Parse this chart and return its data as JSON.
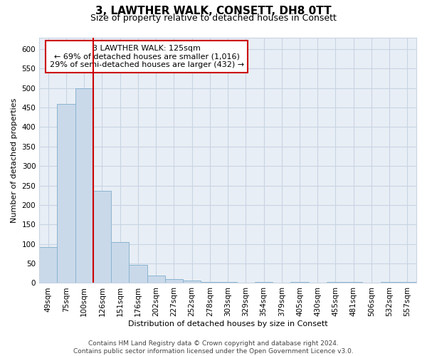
{
  "title1": "3, LAWTHER WALK, CONSETT, DH8 0TT",
  "title2": "Size of property relative to detached houses in Consett",
  "xlabel": "Distribution of detached houses by size in Consett",
  "ylabel": "Number of detached properties",
  "bar_labels": [
    "49sqm",
    "75sqm",
    "100sqm",
    "126sqm",
    "151sqm",
    "176sqm",
    "202sqm",
    "227sqm",
    "252sqm",
    "278sqm",
    "303sqm",
    "329sqm",
    "354sqm",
    "379sqm",
    "405sqm",
    "430sqm",
    "455sqm",
    "481sqm",
    "506sqm",
    "532sqm",
    "557sqm"
  ],
  "bar_values": [
    93,
    460,
    500,
    237,
    105,
    47,
    20,
    10,
    7,
    3,
    3,
    0,
    3,
    0,
    3,
    0,
    3,
    3,
    0,
    3,
    3
  ],
  "bar_color": "#c9d9ea",
  "bar_edgecolor": "#8ab4d0",
  "grid_color": "#c8d4e3",
  "bg_color": "#e8eef5",
  "vline_x": 2.5,
  "vline_color": "#cc0000",
  "annotation_text": "3 LAWTHER WALK: 125sqm\n← 69% of detached houses are smaller (1,016)\n29% of semi-detached houses are larger (432) →",
  "annotation_box_color": "#ffffff",
  "annotation_border_color": "#cc0000",
  "footer_text": "Contains HM Land Registry data © Crown copyright and database right 2024.\nContains public sector information licensed under the Open Government Licence v3.0.",
  "ylim": [
    0,
    630
  ],
  "yticks": [
    0,
    50,
    100,
    150,
    200,
    250,
    300,
    350,
    400,
    450,
    500,
    550,
    600
  ],
  "title1_fontsize": 11,
  "title2_fontsize": 9,
  "axis_fontsize": 8,
  "tick_fontsize": 7.5,
  "footer_fontsize": 6.5
}
